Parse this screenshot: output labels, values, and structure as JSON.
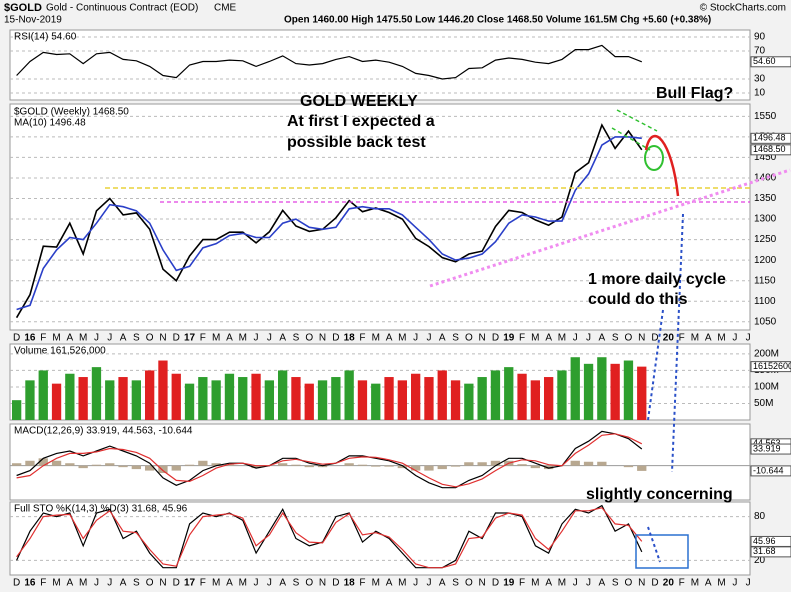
{
  "header": {
    "symbol": "$GOLD",
    "name": "Gold - Continuous Contract (EOD)",
    "exchange": "CME",
    "date": "15-Nov-2019",
    "quote": "Open 1460.00  High 1475.50  Low 1446.20  Close 1468.50  Volume 161.5M  Chg +5.60 (+0.38%)",
    "credit": "© StockCharts.com"
  },
  "annotations": [
    "GOLD WEEKLY",
    "At first I expected a",
    "possible back test",
    "Bull Flag?",
    "1 more daily cycle",
    "could do this",
    "slightly concerning"
  ],
  "chart_data": [
    {
      "type": "line",
      "title": "RSI(14) 54.60",
      "ylim": [
        0,
        100
      ],
      "yticks": [
        10,
        30,
        70,
        90
      ],
      "grid": true,
      "value_tags": [
        {
          "value": 54.6,
          "label": "54.60"
        }
      ],
      "series": [
        {
          "color": "#000000",
          "values": [
            35,
            55,
            68,
            65,
            66,
            52,
            66,
            68,
            58,
            56,
            48,
            35,
            32,
            50,
            55,
            55,
            57,
            56,
            48,
            55,
            63,
            52,
            50,
            52,
            58,
            62,
            55,
            57,
            54,
            48,
            38,
            35,
            30,
            32,
            45,
            46,
            57,
            60,
            58,
            54,
            52,
            58,
            72,
            72,
            78,
            62,
            62,
            54.6
          ]
        }
      ]
    },
    {
      "type": "line",
      "ylim": [
        1030,
        1580
      ],
      "yticks": [
        1050,
        1100,
        1150,
        1200,
        1250,
        1300,
        1350,
        1400,
        1450,
        1500,
        1550
      ],
      "grid": true,
      "value_tags": [
        {
          "value": 1496.48,
          "label": "1496.48"
        },
        {
          "value": 1468.5,
          "label": "1468.50"
        }
      ],
      "categories": [
        "D",
        "16",
        "F",
        "M",
        "A",
        "M",
        "J",
        "J",
        "A",
        "S",
        "O",
        "N",
        "D",
        "17",
        "F",
        "M",
        "A",
        "M",
        "J",
        "J",
        "A",
        "S",
        "O",
        "N",
        "D",
        "18",
        "F",
        "M",
        "A",
        "M",
        "J",
        "J",
        "A",
        "S",
        "O",
        "N",
        "D",
        "19",
        "F",
        "M",
        "A",
        "M",
        "J",
        "J",
        "A",
        "S",
        "O",
        "N",
        "D",
        "20",
        "F",
        "M",
        "A",
        "M",
        "J",
        "J"
      ],
      "series": [
        {
          "name": "$GOLD (Weekly) 1468.50",
          "color": "#000000",
          "values": [
            1060,
            1116,
            1234,
            1232,
            1290,
            1215,
            1320,
            1350,
            1310,
            1315,
            1275,
            1178,
            1150,
            1210,
            1250,
            1250,
            1268,
            1268,
            1242,
            1269,
            1321,
            1283,
            1270,
            1275,
            1303,
            1345,
            1318,
            1327,
            1316,
            1300,
            1253,
            1233,
            1206,
            1196,
            1215,
            1222,
            1282,
            1321,
            1316,
            1298,
            1285,
            1305,
            1413,
            1437,
            1529,
            1472,
            1514,
            1468.5,
            null,
            null,
            null,
            null,
            null,
            null,
            null,
            null
          ]
        },
        {
          "name": "MA(10) 1496.48",
          "color": "#2a3fc8",
          "values": [
            1080,
            1090,
            1180,
            1225,
            1255,
            1250,
            1290,
            1335,
            1330,
            1320,
            1290,
            1225,
            1175,
            1185,
            1230,
            1240,
            1260,
            1265,
            1255,
            1255,
            1290,
            1300,
            1280,
            1275,
            1280,
            1325,
            1330,
            1325,
            1325,
            1310,
            1280,
            1250,
            1215,
            1200,
            1205,
            1215,
            1245,
            1290,
            1310,
            1305,
            1295,
            1295,
            1370,
            1410,
            1480,
            1500,
            1500,
            1496.48,
            null,
            null,
            null,
            null,
            null,
            null,
            null,
            null
          ]
        }
      ]
    },
    {
      "type": "bar",
      "title": "Volume 161,526,000",
      "ylim": [
        0,
        230000000
      ],
      "yticks": [
        {
          "value": 50000000,
          "label": "50M"
        },
        {
          "value": 100000000,
          "label": "100M"
        },
        {
          "value": 150000000,
          "label": "150M"
        },
        {
          "value": 200000000,
          "label": "200M"
        }
      ],
      "grid": true,
      "value_tags": [
        161526000
      ],
      "series": [
        {
          "up_color": "#2e9e2e",
          "down_color": "#e02020",
          "values": [
            60000000,
            120000000,
            150000000,
            110000000,
            140000000,
            130000000,
            160000000,
            120000000,
            130000000,
            120000000,
            150000000,
            180000000,
            140000000,
            110000000,
            130000000,
            120000000,
            140000000,
            130000000,
            140000000,
            120000000,
            150000000,
            130000000,
            110000000,
            120000000,
            130000000,
            150000000,
            120000000,
            110000000,
            130000000,
            120000000,
            140000000,
            130000000,
            150000000,
            120000000,
            110000000,
            130000000,
            150000000,
            160000000,
            140000000,
            120000000,
            130000000,
            150000000,
            190000000,
            170000000,
            190000000,
            170000000,
            180000000,
            161526000
          ]
        }
      ]
    },
    {
      "type": "line",
      "title": "MACD(12,26,9) 33.919, 44.563, -10.644",
      "ylim": [
        -70,
        85
      ],
      "grid": false,
      "value_tags": [
        {
          "value": 44.563,
          "label": "44.563"
        },
        {
          "value": 33.919,
          "label": "33.919"
        },
        {
          "value": -10.644,
          "label": "-10.644"
        }
      ],
      "series": [
        {
          "type": "bar",
          "color": "#b8a890",
          "values": [
            5,
            10,
            15,
            10,
            5,
            -5,
            2,
            5,
            -3,
            -7,
            -10,
            -15,
            -10,
            2,
            10,
            5,
            2,
            0,
            -5,
            0,
            5,
            2,
            -3,
            -3,
            0,
            5,
            2,
            -2,
            -2,
            -5,
            -10,
            -10,
            -7,
            -2,
            7,
            7,
            10,
            10,
            3,
            -5,
            -7,
            0,
            10,
            8,
            8,
            0,
            -3,
            -10.644
          ]
        },
        {
          "color": "#000000",
          "values": [
            -20,
            -10,
            15,
            25,
            30,
            20,
            30,
            40,
            30,
            20,
            5,
            -25,
            -40,
            -30,
            -10,
            0,
            5,
            5,
            -5,
            0,
            15,
            15,
            5,
            0,
            5,
            20,
            20,
            15,
            10,
            0,
            -20,
            -35,
            -45,
            -45,
            -30,
            -20,
            0,
            15,
            15,
            5,
            -5,
            0,
            35,
            50,
            70,
            65,
            55,
            33.919
          ]
        },
        {
          "color": "#e03030",
          "values": [
            -25,
            -20,
            0,
            15,
            25,
            25,
            28,
            35,
            33,
            27,
            15,
            -10,
            -30,
            -32,
            -20,
            -5,
            3,
            5,
            0,
            0,
            10,
            13,
            8,
            3,
            5,
            15,
            18,
            17,
            12,
            5,
            -10,
            -25,
            -38,
            -43,
            -37,
            -27,
            -10,
            5,
            12,
            10,
            2,
            0,
            25,
            42,
            62,
            65,
            58,
            44.563
          ]
        }
      ]
    },
    {
      "type": "line",
      "title": "Full STO %K(14,3) %D(3) 31.68, 45.96",
      "ylim": [
        0,
        100
      ],
      "yticks": [
        20,
        80
      ],
      "grid": true,
      "value_tags": [
        {
          "value": 45.96,
          "label": "45.96"
        },
        {
          "value": 31.68,
          "label": "31.68"
        }
      ],
      "categories": [
        "D",
        "16",
        "F",
        "M",
        "A",
        "M",
        "J",
        "J",
        "A",
        "S",
        "O",
        "N",
        "D",
        "17",
        "F",
        "M",
        "A",
        "M",
        "J",
        "J",
        "A",
        "S",
        "O",
        "N",
        "D",
        "18",
        "F",
        "M",
        "A",
        "M",
        "J",
        "J",
        "A",
        "S",
        "O",
        "N",
        "D",
        "19",
        "F",
        "M",
        "A",
        "M",
        "J",
        "J",
        "A",
        "S",
        "O",
        "N",
        "D",
        "20",
        "F",
        "M",
        "A",
        "M",
        "J",
        "J"
      ],
      "series": [
        {
          "color": "#000000",
          "values": [
            20,
            60,
            85,
            80,
            85,
            40,
            85,
            90,
            50,
            60,
            30,
            10,
            10,
            70,
            85,
            80,
            85,
            75,
            30,
            60,
            90,
            50,
            40,
            45,
            80,
            85,
            45,
            60,
            50,
            30,
            10,
            10,
            10,
            20,
            60,
            50,
            85,
            85,
            80,
            40,
            30,
            70,
            90,
            85,
            95,
            60,
            70,
            31.68,
            null,
            null,
            null,
            null,
            null,
            null,
            null,
            null
          ]
        },
        {
          "color": "#e03030",
          "values": [
            25,
            50,
            80,
            82,
            83,
            50,
            75,
            88,
            60,
            58,
            35,
            15,
            12,
            55,
            80,
            82,
            84,
            78,
            40,
            55,
            85,
            58,
            45,
            44,
            72,
            84,
            55,
            58,
            52,
            35,
            15,
            10,
            10,
            15,
            50,
            52,
            78,
            85,
            82,
            50,
            35,
            60,
            88,
            88,
            92,
            70,
            68,
            45.96,
            null,
            null,
            null,
            null,
            null,
            null,
            null,
            null
          ]
        }
      ]
    }
  ]
}
